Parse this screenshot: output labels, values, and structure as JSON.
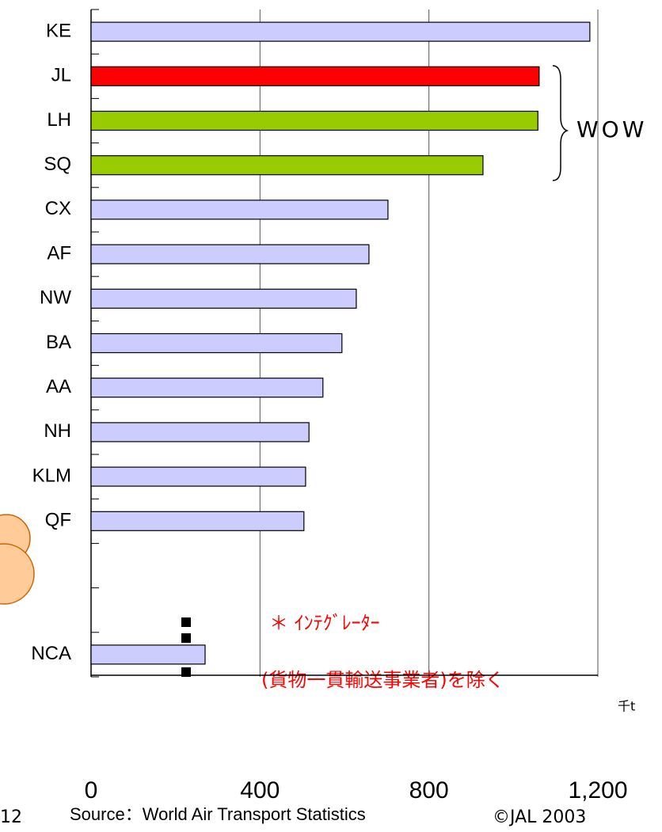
{
  "chart_data": {
    "type": "bar",
    "orientation": "horizontal",
    "categories": [
      "KE",
      "JL",
      "LH",
      "SQ",
      "CX",
      "AF",
      "NW",
      "BA",
      "AA",
      "NH",
      "KLM",
      "QF",
      null,
      null,
      "NCA"
    ],
    "values": [
      1181,
      1061,
      1058,
      928,
      703,
      658,
      628,
      594,
      549,
      516,
      508,
      504,
      null,
      null,
      270
    ],
    "colors": [
      "#ccccff",
      "#ff0000",
      "#99cc00",
      "#99cc00",
      "#ccccff",
      "#ccccff",
      "#ccccff",
      "#ccccff",
      "#ccccff",
      "#ccccff",
      "#ccccff",
      "#ccccff",
      null,
      null,
      "#ccccff"
    ],
    "xlim": [
      0,
      1200
    ],
    "xticks": [
      0,
      400,
      800,
      {
        "value": 1200,
        "label": "1,200"
      }
    ],
    "grid": true,
    "unit_label": "千t",
    "group_label": "WOW",
    "annotations": [
      "＊ ｲﾝﾃｸﾞﾚｰﾀｰ",
      "(貨物一貫輸送事業者)を除く"
    ],
    "source": "Source：World Air Transport Statistics",
    "page_number": "12",
    "copyright": "©JAL 2003"
  }
}
